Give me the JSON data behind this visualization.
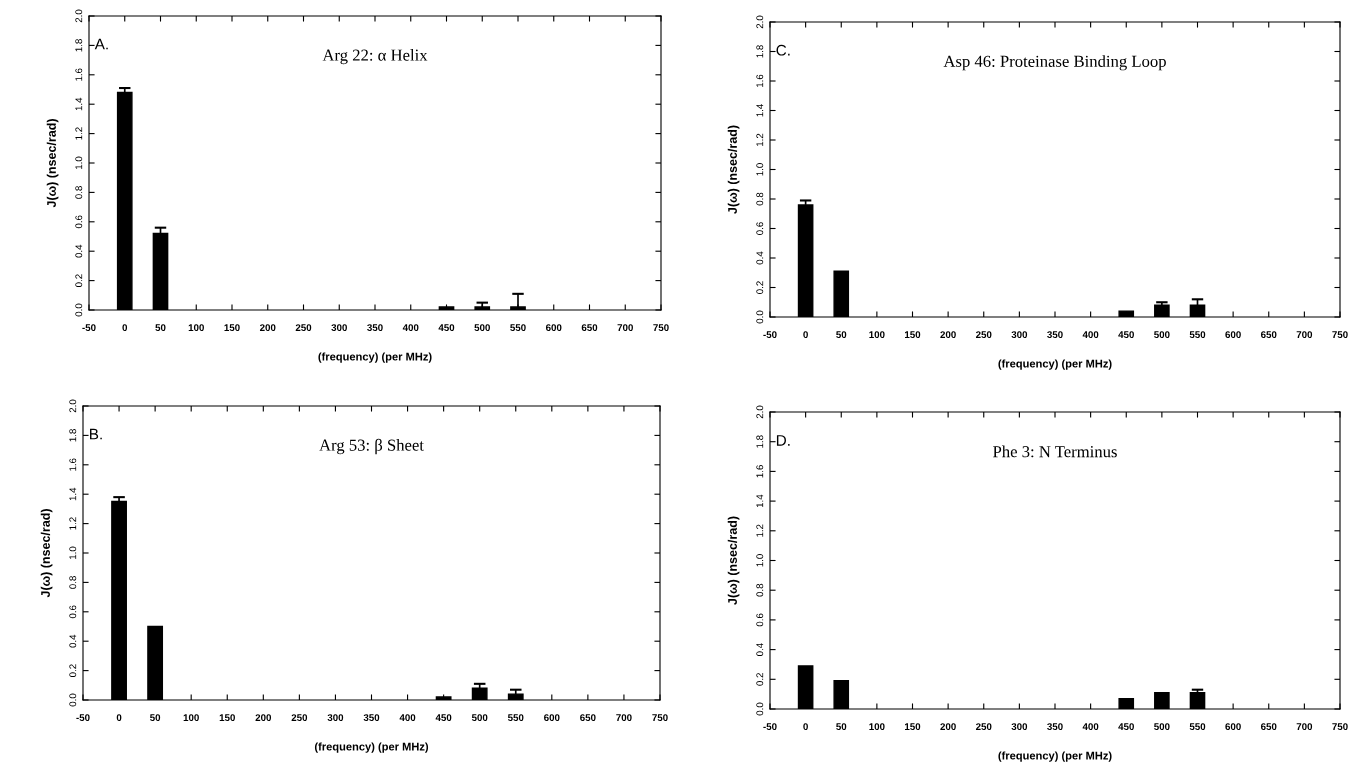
{
  "chart_data": [
    {
      "type": "bar",
      "title": "Arg 22: α Helix",
      "annotations": [
        "A."
      ],
      "xlabel": "(frequency) (per MHz)",
      "ylabel": "J(ω) (nsec/rad)",
      "color": "#000000",
      "x": [
        0,
        50,
        450,
        500,
        550
      ],
      "values": [
        1.48,
        0.52,
        0.02,
        0.02,
        0.02
      ],
      "errors": [
        [
          1.48,
          1.51
        ],
        [
          0.52,
          0.56
        ],
        null,
        [
          0.02,
          0.05
        ],
        [
          0.02,
          0.11
        ]
      ],
      "xlim": [
        -50,
        750
      ],
      "xticks": [
        -50,
        0,
        50,
        100,
        150,
        200,
        250,
        300,
        350,
        400,
        450,
        500,
        550,
        600,
        650,
        700,
        750
      ],
      "ylim": [
        0,
        2
      ],
      "yticks": [
        {
          "value": 0,
          "label": "0.0"
        },
        {
          "value": 0.2,
          "label": "0.2"
        },
        {
          "value": 0.4,
          "label": "0.4"
        },
        {
          "value": 0.6,
          "label": "0.6"
        },
        {
          "value": 0.8,
          "label": "0.8"
        },
        {
          "value": 1.0,
          "label": "1.0"
        },
        {
          "value": 1.2,
          "label": "1.2"
        },
        {
          "value": 1.4,
          "label": "1.4"
        },
        {
          "value": 1.6,
          "label": "1.6"
        },
        {
          "value": 1.8,
          "label": "1.8"
        },
        {
          "value": 2.0,
          "label": "2.0"
        }
      ],
      "grid": false
    },
    {
      "type": "bar",
      "title": "Asp 46: Proteinase Binding Loop",
      "annotations": [
        "C."
      ],
      "xlabel": "(frequency) (per MHz)",
      "ylabel": "J(ω) (nsec/rad)",
      "color": "#000000",
      "x": [
        0,
        50,
        450,
        500,
        550
      ],
      "values": [
        0.76,
        0.31,
        0.04,
        0.08,
        0.08
      ],
      "errors": [
        [
          0.76,
          0.79
        ],
        null,
        null,
        [
          0.08,
          0.1
        ],
        [
          0.08,
          0.12
        ]
      ],
      "xlim": [
        -50,
        750
      ],
      "xticks": [
        -50,
        0,
        50,
        100,
        150,
        200,
        250,
        300,
        350,
        400,
        450,
        500,
        550,
        600,
        650,
        700,
        750
      ],
      "ylim": [
        0,
        2
      ],
      "yticks": [
        {
          "value": 0,
          "label": "0.0"
        },
        {
          "value": 0.2,
          "label": "0.2"
        },
        {
          "value": 0.4,
          "label": "0.4"
        },
        {
          "value": 0.6,
          "label": "0.6"
        },
        {
          "value": 0.8,
          "label": "0.8"
        },
        {
          "value": 1.0,
          "label": "1.0"
        },
        {
          "value": 1.2,
          "label": "1.2"
        },
        {
          "value": 1.4,
          "label": "1.4"
        },
        {
          "value": 1.6,
          "label": "1.6"
        },
        {
          "value": 1.8,
          "label": "1.8"
        },
        {
          "value": 2.0,
          "label": "2.0"
        }
      ],
      "grid": false
    },
    {
      "type": "bar",
      "title": "Arg 53: β Sheet",
      "annotations": [
        "B."
      ],
      "xlabel": "(frequency) (per MHz)",
      "ylabel": "J(ω) (nsec/rad)",
      "color": "#000000",
      "x": [
        0,
        50,
        450,
        500,
        550
      ],
      "values": [
        1.35,
        0.5,
        0.02,
        0.08,
        0.04
      ],
      "errors": [
        [
          1.35,
          1.38
        ],
        null,
        null,
        [
          0.08,
          0.11
        ],
        [
          0.04,
          0.07
        ]
      ],
      "xlim": [
        -50,
        750
      ],
      "xticks": [
        -50,
        0,
        50,
        100,
        150,
        200,
        250,
        300,
        350,
        400,
        450,
        500,
        550,
        600,
        650,
        700,
        750
      ],
      "ylim": [
        0,
        2
      ],
      "yticks": [
        {
          "value": 0,
          "label": "0.0"
        },
        {
          "value": 0.2,
          "label": "0.2"
        },
        {
          "value": 0.4,
          "label": "0.4"
        },
        {
          "value": 0.6,
          "label": "0.6"
        },
        {
          "value": 0.8,
          "label": "0.8"
        },
        {
          "value": 1.0,
          "label": "1.0"
        },
        {
          "value": 1.2,
          "label": "1.2"
        },
        {
          "value": 1.4,
          "label": "1.4"
        },
        {
          "value": 1.6,
          "label": "1.6"
        },
        {
          "value": 1.8,
          "label": "1.8"
        },
        {
          "value": 2.0,
          "label": "2.0"
        }
      ],
      "grid": false
    },
    {
      "type": "bar",
      "title": "Phe 3: N Terminus",
      "annotations": [
        "D."
      ],
      "xlabel": "(frequency) (per MHz)",
      "ylabel": "J(ω) (nsec/rad)",
      "color": "#000000",
      "x": [
        0,
        50,
        450,
        500,
        550
      ],
      "values": [
        0.29,
        0.19,
        0.07,
        0.11,
        0.11
      ],
      "errors": [
        null,
        null,
        null,
        null,
        [
          0.11,
          0.13
        ]
      ],
      "xlim": [
        -50,
        750
      ],
      "xticks": [
        -50,
        0,
        50,
        100,
        150,
        200,
        250,
        300,
        350,
        400,
        450,
        500,
        550,
        600,
        650,
        700,
        750
      ],
      "ylim": [
        0,
        2
      ],
      "yticks": [
        {
          "value": 0,
          "label": "0.0"
        },
        {
          "value": 0.2,
          "label": "0.2"
        },
        {
          "value": 0.4,
          "label": "0.4"
        },
        {
          "value": 0.6,
          "label": "0.6"
        },
        {
          "value": 0.8,
          "label": "0.8"
        },
        {
          "value": 1.0,
          "label": "1.0"
        },
        {
          "value": 1.2,
          "label": "1.2"
        },
        {
          "value": 1.4,
          "label": "1.4"
        },
        {
          "value": 1.6,
          "label": "1.6"
        },
        {
          "value": 1.8,
          "label": "1.8"
        },
        {
          "value": 2.0,
          "label": "2.0"
        }
      ],
      "grid": false
    }
  ]
}
